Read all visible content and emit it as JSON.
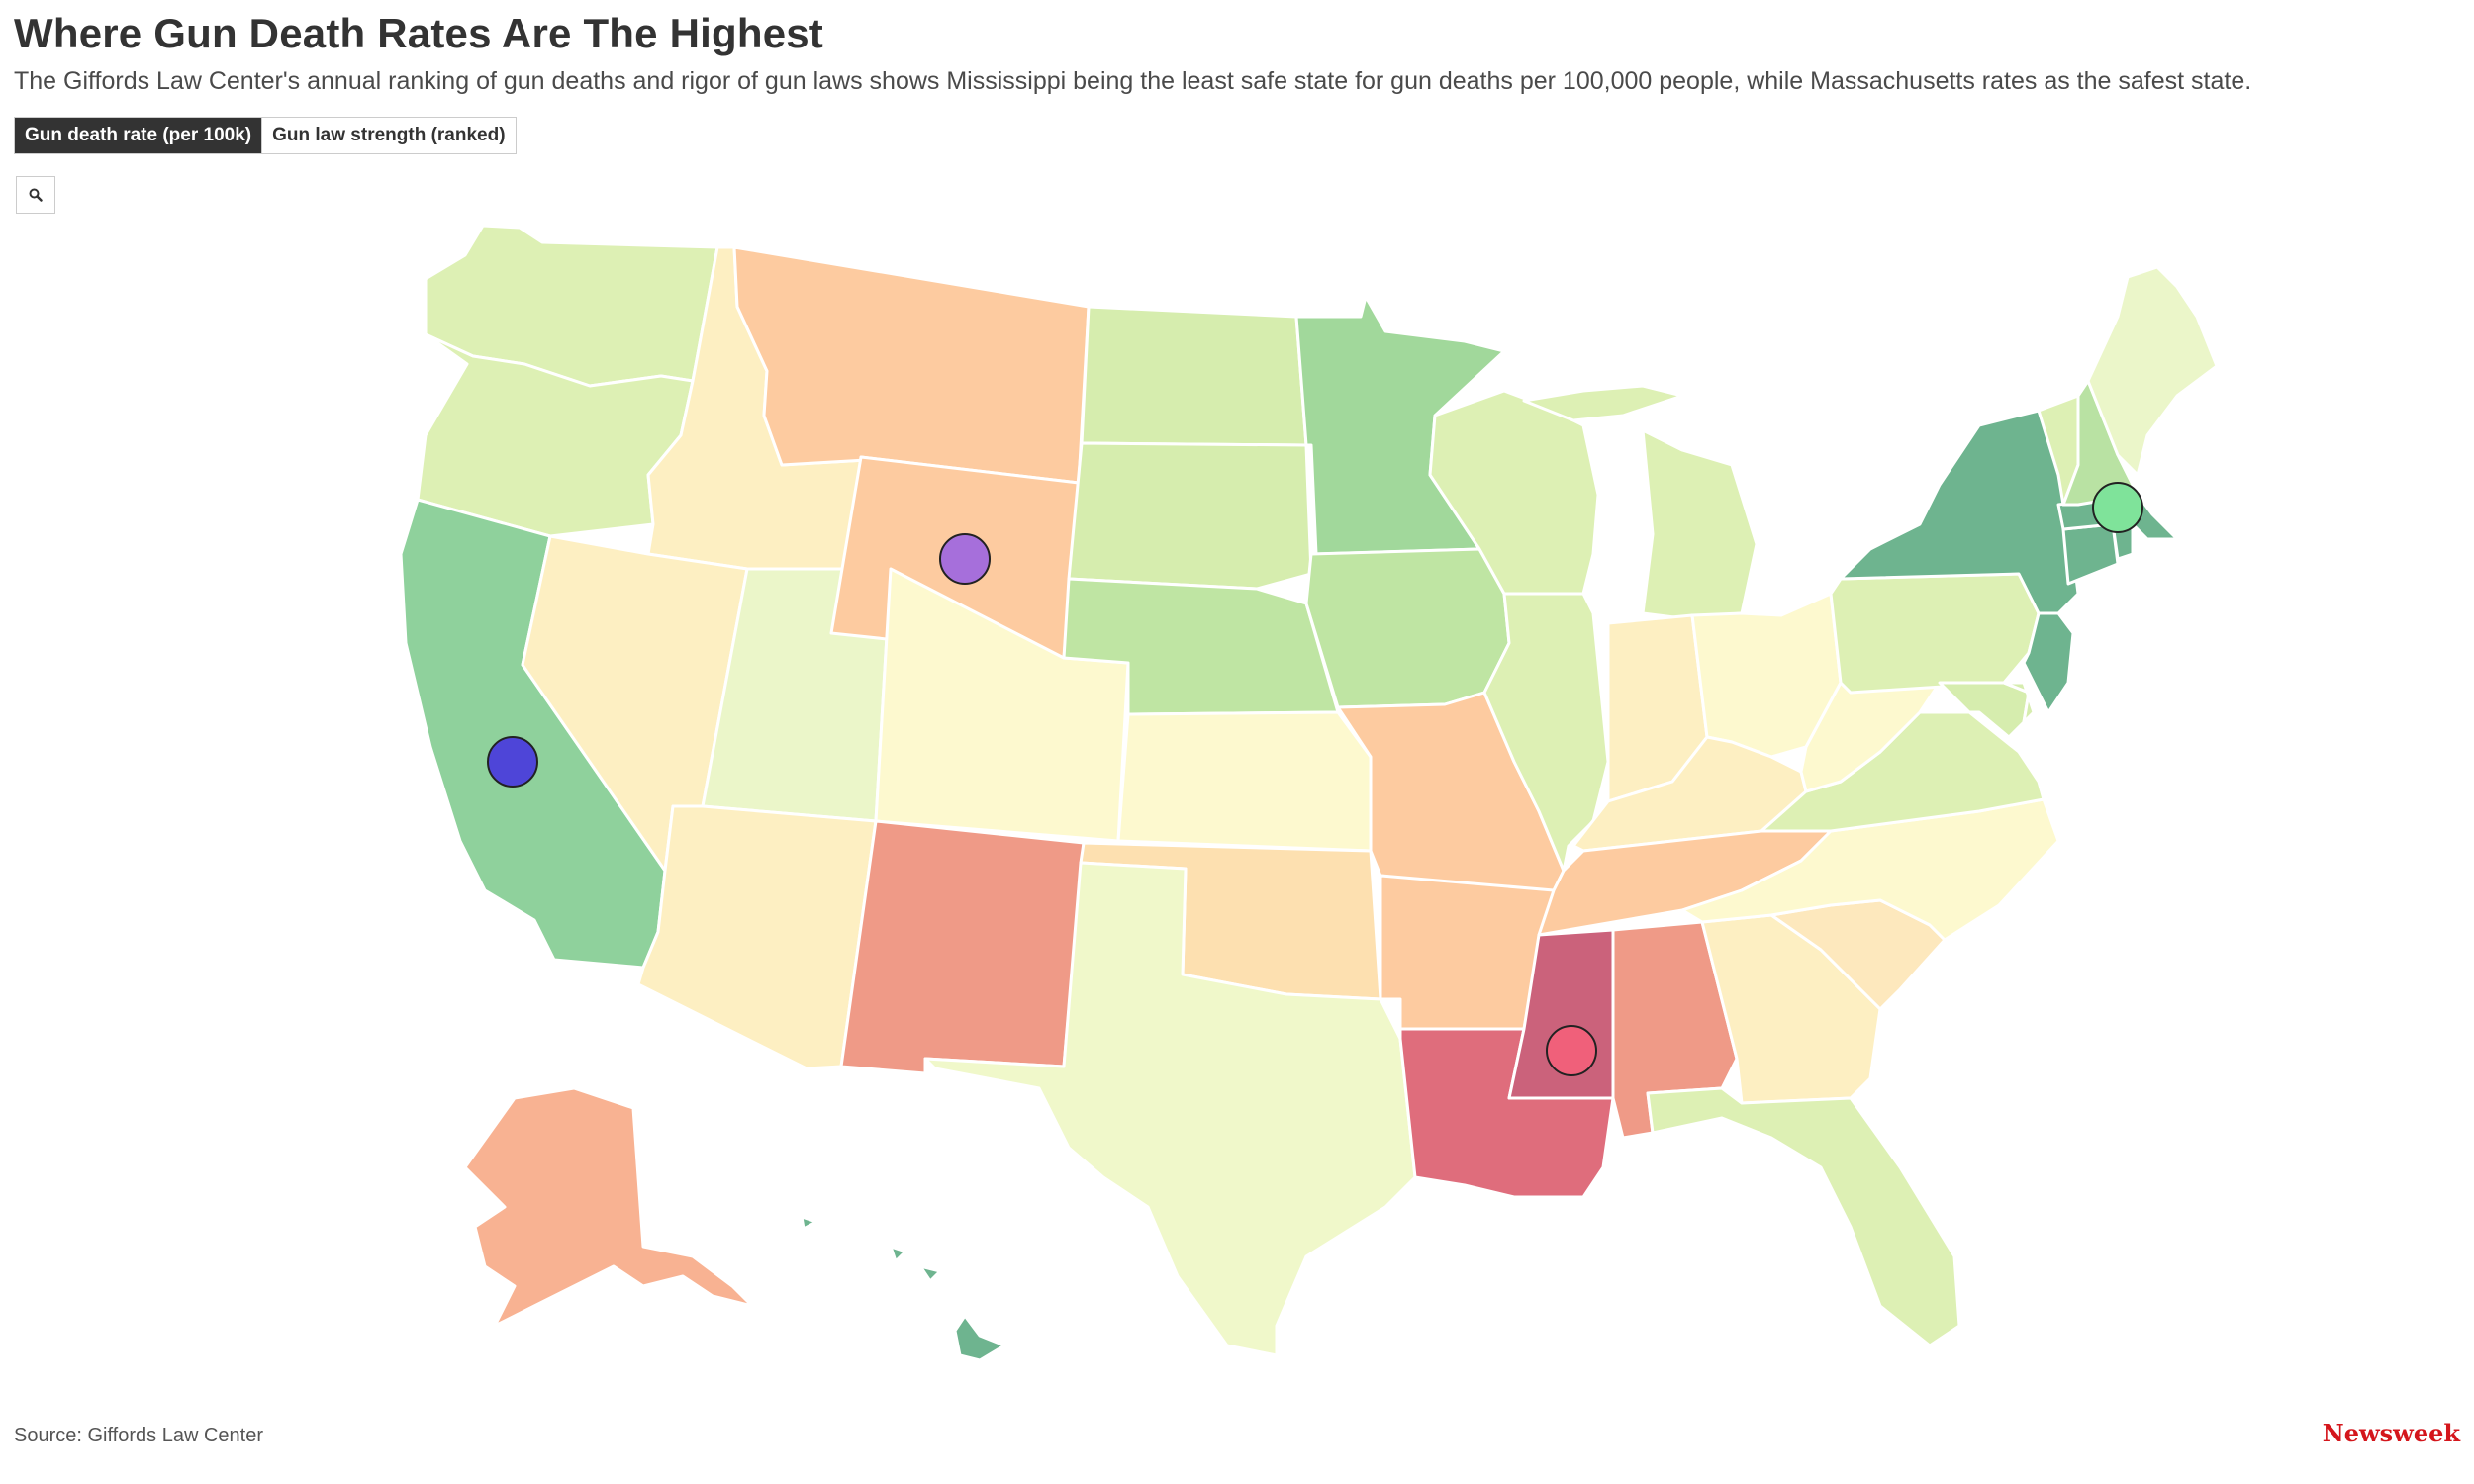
{
  "header": {
    "title": "Where Gun Death Rates Are The Highest",
    "subtitle": "The Giffords Law Center's annual ranking of gun deaths and rigor of gun laws shows Mississippi being the least safe state for gun deaths per 100,000 people, while Massachusetts rates as the safest state."
  },
  "toggle": {
    "options": [
      {
        "label": "Gun death rate (per 100k)",
        "active": true
      },
      {
        "label": "Gun law strength (ranked)",
        "active": false
      }
    ]
  },
  "controls": {
    "zoom_icon": "search-icon"
  },
  "map": {
    "states": [
      {
        "id": "WA",
        "color": "#ddf0b4"
      },
      {
        "id": "OR",
        "color": "#ddf0b4"
      },
      {
        "id": "CA",
        "color": "#8fd19c"
      },
      {
        "id": "ID",
        "color": "#fdefc2"
      },
      {
        "id": "NV",
        "color": "#fdefc2"
      },
      {
        "id": "AZ",
        "color": "#fdefc2"
      },
      {
        "id": "UT",
        "color": "#ebf6c9"
      },
      {
        "id": "MT",
        "color": "#fdcba0"
      },
      {
        "id": "WY",
        "color": "#fdcba0"
      },
      {
        "id": "CO",
        "color": "#fdf9cf"
      },
      {
        "id": "NM",
        "color": "#ef9a87"
      },
      {
        "id": "ND",
        "color": "#d6edae"
      },
      {
        "id": "SD",
        "color": "#d6edae"
      },
      {
        "id": "NE",
        "color": "#bfe5a3"
      },
      {
        "id": "KS",
        "color": "#fdf9cf"
      },
      {
        "id": "OK",
        "color": "#fde0b0"
      },
      {
        "id": "TX",
        "color": "#f0f8ca"
      },
      {
        "id": "MN",
        "color": "#a1d89b"
      },
      {
        "id": "IA",
        "color": "#bfe5a3"
      },
      {
        "id": "MO",
        "color": "#fdcba0"
      },
      {
        "id": "AR",
        "color": "#fdcba0"
      },
      {
        "id": "LA",
        "color": "#df6d7c"
      },
      {
        "id": "WI",
        "color": "#ddf0b4"
      },
      {
        "id": "IL",
        "color": "#ddf0b4"
      },
      {
        "id": "MI",
        "color": "#ddf0b4"
      },
      {
        "id": "IN",
        "color": "#fdefc2"
      },
      {
        "id": "OH",
        "color": "#fdf9cf"
      },
      {
        "id": "KY",
        "color": "#fdefc2"
      },
      {
        "id": "TN",
        "color": "#fdcba0"
      },
      {
        "id": "MS",
        "color": "#cb627b"
      },
      {
        "id": "AL",
        "color": "#ef9a87"
      },
      {
        "id": "GA",
        "color": "#fdefc2"
      },
      {
        "id": "FL",
        "color": "#ddf0b4"
      },
      {
        "id": "SC",
        "color": "#fde8bd"
      },
      {
        "id": "NC",
        "color": "#fdf9cf"
      },
      {
        "id": "VA",
        "color": "#ddf0b4"
      },
      {
        "id": "WV",
        "color": "#fdf9cf"
      },
      {
        "id": "PA",
        "color": "#ddf0b4"
      },
      {
        "id": "NY",
        "color": "#6eb48f"
      },
      {
        "id": "NJ",
        "color": "#6eb48f"
      },
      {
        "id": "MD",
        "color": "#d6edae"
      },
      {
        "id": "DE",
        "color": "#d6edae"
      },
      {
        "id": "CT",
        "color": "#6eb48f"
      },
      {
        "id": "RI",
        "color": "#6eb48f"
      },
      {
        "id": "MA",
        "color": "#6eb48f"
      },
      {
        "id": "VT",
        "color": "#ddf0b4"
      },
      {
        "id": "NH",
        "color": "#b9e2a3"
      },
      {
        "id": "ME",
        "color": "#ebf6c9"
      },
      {
        "id": "AK",
        "color": "#f8b292"
      },
      {
        "id": "HI",
        "color": "#6eb48f"
      }
    ],
    "markers": [
      {
        "id": "wyoming-marker",
        "color": "#a66fdb"
      },
      {
        "id": "california-marker",
        "color": "#4e45d8"
      },
      {
        "id": "mississippi-marker",
        "color": "#f0607a"
      },
      {
        "id": "massachusetts-marker",
        "color": "#7fe39a"
      }
    ]
  },
  "footer": {
    "source": "Source: Giffords Law Center",
    "logo": "Newsweek"
  }
}
